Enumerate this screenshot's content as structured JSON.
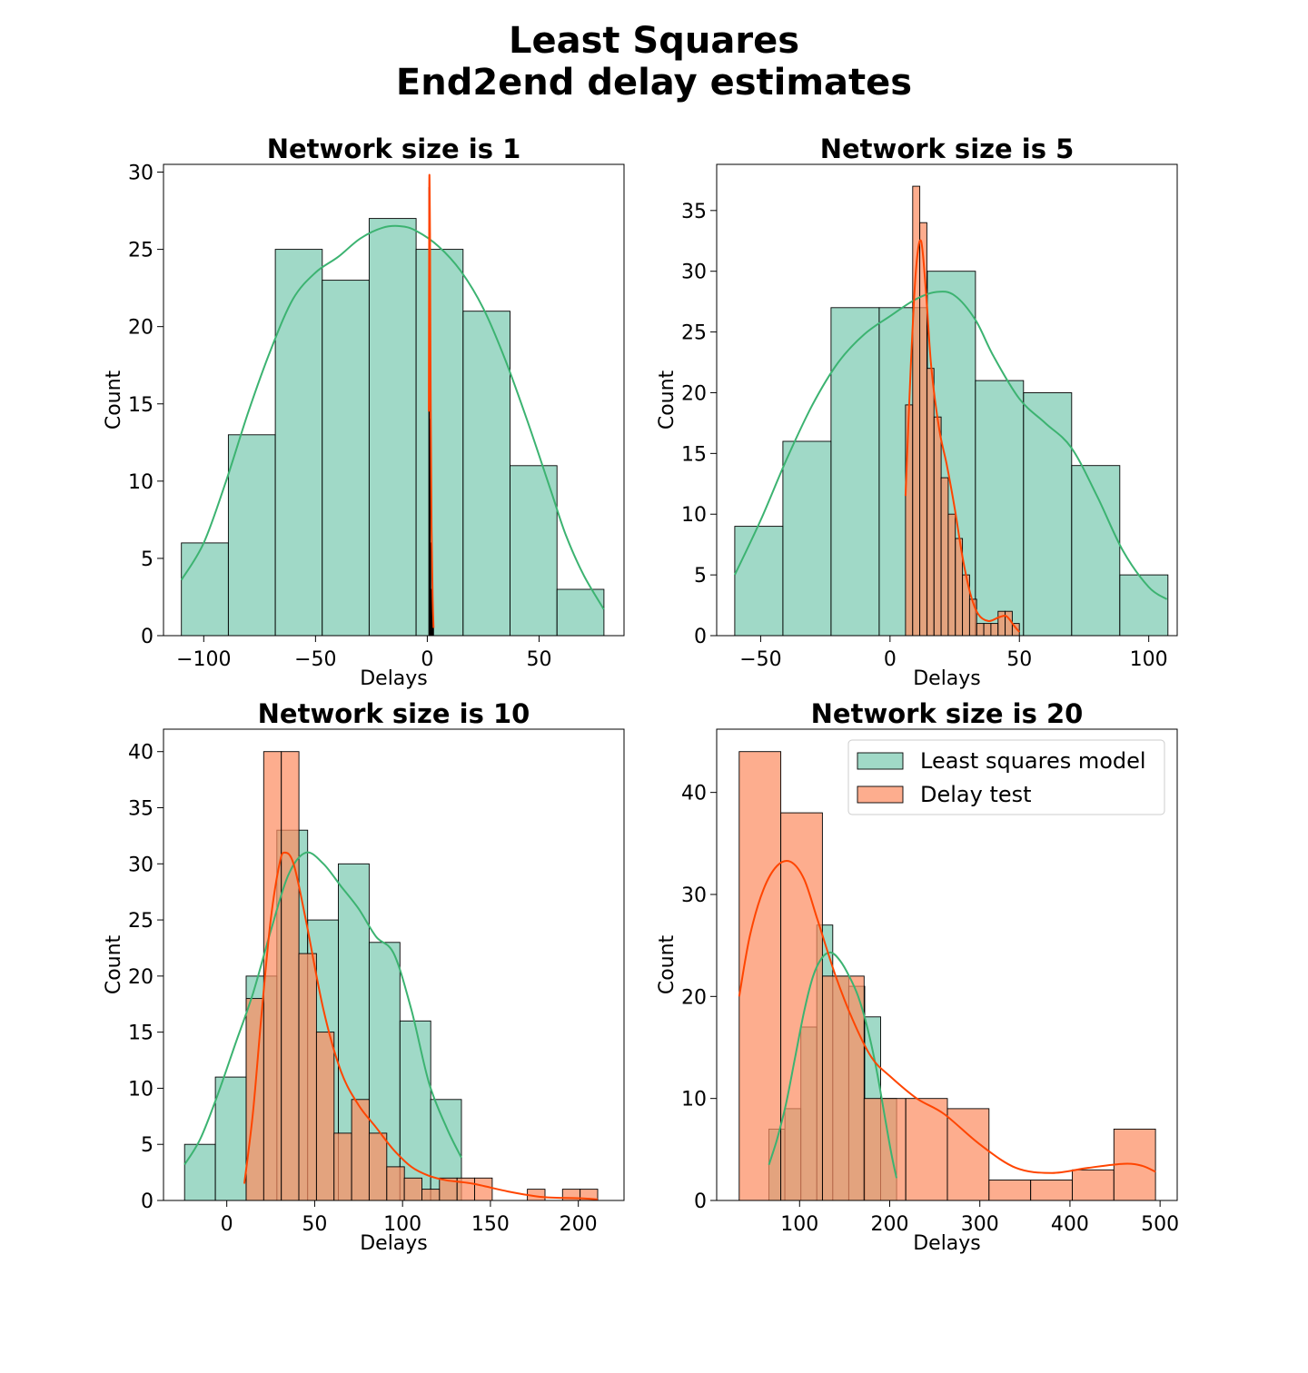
{
  "figure": {
    "title_line1": "Least Squares",
    "title_line2": "End2end delay estimates"
  },
  "colors": {
    "model_fill": "#66c2a5",
    "model_line": "#3cb371",
    "test_fill": "#fc8d62",
    "test_line": "#ff4500",
    "overlap_fill": "#cd8a5a"
  },
  "legend": {
    "placement": "upper right of bottom-right panel",
    "entries": [
      {
        "label": "Least squares model",
        "series": "model"
      },
      {
        "label": "Delay test",
        "series": "test"
      }
    ]
  },
  "chart_data": [
    {
      "type": "bar",
      "title": "Network size is 1",
      "xlabel": "Delays",
      "ylabel": "Count",
      "xlim": [
        -118,
        88
      ],
      "ylim": [
        0,
        30.5
      ],
      "xticks": [
        -100,
        -50,
        0,
        50
      ],
      "xtick_labels": [
        "−100",
        "−50",
        "0",
        "50"
      ],
      "yticks": [
        0,
        5,
        10,
        15,
        20,
        25,
        30
      ],
      "grid": false,
      "series": [
        {
          "name": "Least squares model",
          "key": "model",
          "bin_edges": [
            -110,
            -89,
            -68,
            -47,
            -26,
            -5,
            16,
            37,
            58,
            79
          ],
          "counts": [
            6,
            13,
            25,
            23,
            27,
            25,
            21,
            11,
            3
          ],
          "kde": [
            [
              -110,
              3.6
            ],
            [
              -100,
              6
            ],
            [
              -90,
              10
            ],
            [
              -80,
              14.5
            ],
            [
              -70,
              18.5
            ],
            [
              -60,
              21.8
            ],
            [
              -50,
              23.5
            ],
            [
              -40,
              24.5
            ],
            [
              -30,
              25.7
            ],
            [
              -20,
              26.4
            ],
            [
              -12,
              26.5
            ],
            [
              -5,
              26.2
            ],
            [
              5,
              25.2
            ],
            [
              15,
              23.6
            ],
            [
              25,
              21.2
            ],
            [
              35,
              17.8
            ],
            [
              45,
              13.8
            ],
            [
              55,
              9.5
            ],
            [
              62,
              6.5
            ],
            [
              70,
              3.9
            ],
            [
              79,
              1.7
            ]
          ]
        },
        {
          "name": "Delay test",
          "key": "test",
          "bin_edges": [
            0.7,
            1.0,
            1.3,
            1.6,
            1.9,
            2.2,
            2.5,
            2.8
          ],
          "counts": [
            29,
            14,
            6,
            3,
            2,
            1,
            1
          ],
          "kde": [
            [
              0.7,
              14.5
            ],
            [
              0.9,
              29.2
            ],
            [
              1.2,
              26
            ],
            [
              1.5,
              16
            ],
            [
              1.9,
              7
            ],
            [
              2.4,
              2.5
            ],
            [
              2.8,
              0.5
            ]
          ]
        }
      ]
    },
    {
      "type": "bar",
      "title": "Network size is 5",
      "xlabel": "Delays",
      "ylabel": "Count",
      "xlim": [
        -67,
        111
      ],
      "ylim": [
        0,
        38.8
      ],
      "xticks": [
        -50,
        0,
        50,
        100
      ],
      "xtick_labels": [
        "−50",
        "0",
        "50",
        "100"
      ],
      "yticks": [
        0,
        5,
        10,
        15,
        20,
        25,
        30,
        35
      ],
      "grid": false,
      "series": [
        {
          "name": "Least squares model",
          "key": "model",
          "bin_edges": [
            -60,
            -41.4,
            -22.8,
            -4.2,
            14.4,
            33,
            51.6,
            70.2,
            88.8,
            107.4
          ],
          "counts": [
            9,
            16,
            27,
            27,
            30,
            21,
            20,
            14,
            5
          ],
          "kde": [
            [
              -60,
              5
            ],
            [
              -50,
              9.5
            ],
            [
              -40,
              14.5
            ],
            [
              -30,
              19
            ],
            [
              -20,
              22.5
            ],
            [
              -10,
              24.8
            ],
            [
              0,
              26.3
            ],
            [
              10,
              27.7
            ],
            [
              18,
              28.3
            ],
            [
              25,
              28
            ],
            [
              33,
              26
            ],
            [
              40,
              23
            ],
            [
              50,
              19.5
            ],
            [
              60,
              17.5
            ],
            [
              70,
              15.5
            ],
            [
              80,
              11.5
            ],
            [
              90,
              7
            ],
            [
              100,
              4
            ],
            [
              107,
              3
            ]
          ]
        },
        {
          "name": "Delay test",
          "key": "test",
          "bin_edges": [
            6,
            8.75,
            11.5,
            14.25,
            17,
            19.75,
            22.5,
            25.25,
            28,
            30.75,
            33.5,
            36.25,
            39,
            41.75,
            44.5,
            47.25,
            50
          ],
          "counts": [
            19,
            37,
            34,
            22,
            18,
            13,
            10,
            8,
            5,
            3,
            1,
            1,
            1,
            2,
            2,
            1
          ],
          "kde": [
            [
              6,
              11.5
            ],
            [
              8,
              22
            ],
            [
              10,
              30
            ],
            [
              12,
              32.5
            ],
            [
              14,
              28
            ],
            [
              16,
              22
            ],
            [
              19,
              17
            ],
            [
              22,
              14
            ],
            [
              25,
              10.5
            ],
            [
              28,
              6.5
            ],
            [
              31,
              3.5
            ],
            [
              34,
              1.8
            ],
            [
              38,
              1.2
            ],
            [
              42,
              1.5
            ],
            [
              45,
              1.6
            ],
            [
              48,
              0.8
            ],
            [
              50,
              0.3
            ]
          ]
        }
      ]
    },
    {
      "type": "bar",
      "title": "Network size is 10",
      "xlabel": "Delays",
      "ylabel": "Count",
      "xlim": [
        -36,
        226
      ],
      "ylim": [
        0,
        42
      ],
      "xticks": [
        0,
        50,
        100,
        150,
        200
      ],
      "xtick_labels": [
        "0",
        "50",
        "100",
        "150",
        "200"
      ],
      "yticks": [
        0,
        5,
        10,
        15,
        20,
        25,
        30,
        35,
        40
      ],
      "grid": false,
      "series": [
        {
          "name": "Least squares model",
          "key": "model",
          "bin_edges": [
            -24,
            -6.5,
            11,
            28.5,
            46,
            63.5,
            81,
            98.5,
            116,
            133.5
          ],
          "counts": [
            5,
            11,
            20,
            33,
            25,
            30,
            23,
            16,
            9
          ],
          "kde": [
            [
              -24,
              3.2
            ],
            [
              -15,
              5.5
            ],
            [
              -5,
              9.5
            ],
            [
              5,
              14
            ],
            [
              15,
              18.5
            ],
            [
              25,
              24
            ],
            [
              35,
              29
            ],
            [
              45,
              31
            ],
            [
              55,
              30
            ],
            [
              65,
              28
            ],
            [
              75,
              26
            ],
            [
              85,
              23.5
            ],
            [
              95,
              22
            ],
            [
              105,
              17
            ],
            [
              115,
              10.5
            ],
            [
              125,
              6.5
            ],
            [
              133.5,
              3.8
            ]
          ]
        },
        {
          "name": "Delay test",
          "key": "test",
          "bin_edges": [
            11,
            21,
            31,
            41,
            51,
            61,
            71,
            81,
            91,
            101,
            111,
            121,
            131,
            141,
            151,
            161,
            171,
            181,
            191,
            201,
            211
          ],
          "counts": [
            18,
            40,
            40,
            22,
            15,
            6,
            9,
            6,
            3,
            2,
            1,
            2,
            2,
            2,
            0,
            0,
            1,
            0,
            1,
            1
          ],
          "kde": [
            [
              10,
              1.5
            ],
            [
              15,
              8
            ],
            [
              20,
              17
            ],
            [
              25,
              25
            ],
            [
              30,
              30
            ],
            [
              33,
              31
            ],
            [
              38,
              30
            ],
            [
              45,
              25
            ],
            [
              55,
              17
            ],
            [
              65,
              11.5
            ],
            [
              75,
              8.5
            ],
            [
              85,
              6.5
            ],
            [
              95,
              4.5
            ],
            [
              105,
              3
            ],
            [
              115,
              2.2
            ],
            [
              125,
              1.8
            ],
            [
              140,
              1.5
            ],
            [
              160,
              0.8
            ],
            [
              180,
              0.3
            ],
            [
              200,
              0.2
            ],
            [
              211,
              0.1
            ]
          ]
        }
      ]
    },
    {
      "type": "bar",
      "title": "Network size is 20",
      "xlabel": "Delays",
      "ylabel": "Count",
      "xlim": [
        8,
        519
      ],
      "ylim": [
        0,
        46.2
      ],
      "xticks": [
        100,
        200,
        300,
        400,
        500
      ],
      "xtick_labels": [
        "100",
        "200",
        "300",
        "400",
        "500"
      ],
      "yticks": [
        0,
        10,
        20,
        30,
        40
      ],
      "grid": false,
      "series": [
        {
          "name": "Least squares model",
          "key": "model",
          "bin_edges": [
            66,
            83.7,
            101.4,
            119.1,
            136.8,
            154.5,
            172.2,
            189.9,
            207.6
          ],
          "counts": [
            7,
            9,
            17,
            27,
            22,
            21,
            18,
            10
          ],
          "kde": [
            [
              66,
              3.5
            ],
            [
              75,
              6
            ],
            [
              85,
              9.5
            ],
            [
              95,
              14
            ],
            [
              105,
              18.5
            ],
            [
              115,
              22
            ],
            [
              125,
              23.8
            ],
            [
              135,
              24.3
            ],
            [
              145,
              23.5
            ],
            [
              155,
              22
            ],
            [
              165,
              20
            ],
            [
              175,
              17
            ],
            [
              185,
              13
            ],
            [
              195,
              8
            ],
            [
              202,
              4.5
            ],
            [
              207.6,
              2.2
            ]
          ]
        },
        {
          "name": "Delay test",
          "key": "test",
          "bin_edges": [
            33,
            79.2,
            125.4,
            171.6,
            217.8,
            264,
            310.2,
            356.4,
            402.6,
            448.8,
            495
          ],
          "counts": [
            44,
            38,
            22,
            10,
            10,
            9,
            2,
            2,
            3,
            7
          ],
          "kde": [
            [
              33,
              20
            ],
            [
              45,
              26
            ],
            [
              60,
              30.5
            ],
            [
              75,
              32.8
            ],
            [
              90,
              33.2
            ],
            [
              105,
              31.5
            ],
            [
              120,
              27.5
            ],
            [
              140,
              22
            ],
            [
              160,
              17.5
            ],
            [
              180,
              14
            ],
            [
              200,
              12.2
            ],
            [
              230,
              10
            ],
            [
              260,
              8.5
            ],
            [
              300,
              5.5
            ],
            [
              340,
              3.2
            ],
            [
              380,
              2.7
            ],
            [
              420,
              3.2
            ],
            [
              460,
              3.6
            ],
            [
              480,
              3.4
            ],
            [
              495,
              2.8
            ]
          ]
        }
      ]
    }
  ]
}
